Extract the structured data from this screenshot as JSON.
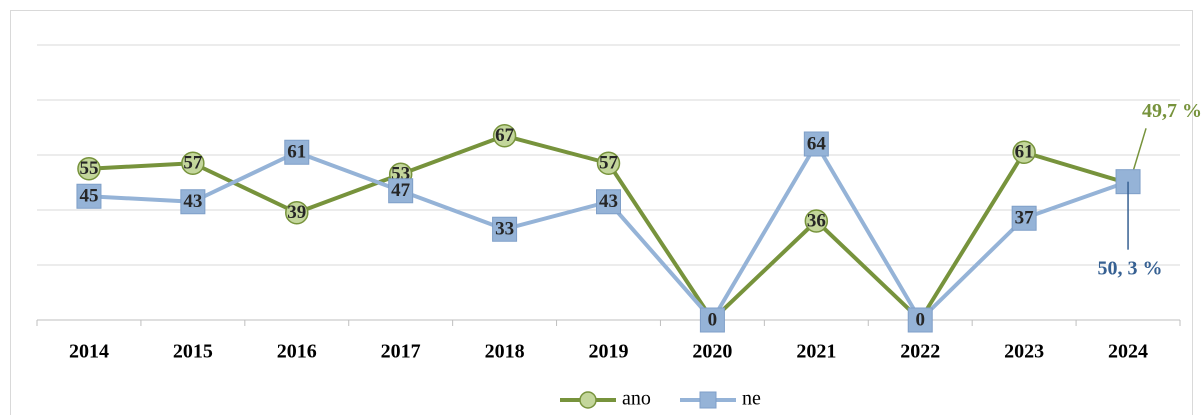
{
  "chart_data": {
    "type": "line",
    "categories": [
      "2014",
      "2015",
      "2016",
      "2017",
      "2018",
      "2019",
      "2020",
      "2021",
      "2022",
      "2023",
      "2024"
    ],
    "series": [
      {
        "name": "ano",
        "color": "#77933c",
        "marker_fill": "#c3d69b",
        "marker": "circle",
        "values": [
          55,
          57,
          39,
          53,
          67,
          57,
          0,
          36,
          0,
          61,
          49.7
        ],
        "value_labels": [
          "55",
          "57",
          "39",
          "53",
          "67",
          "57",
          "0",
          "36",
          "0",
          "61",
          "49,7 %"
        ]
      },
      {
        "name": "ne",
        "color": "#95b3d7",
        "marker_fill": "#95b3d7",
        "marker": "square",
        "values": [
          45,
          43,
          61,
          47,
          33,
          43,
          0,
          64,
          0,
          37,
          50.3
        ],
        "value_labels": [
          "45",
          "43",
          "61",
          "47",
          "33",
          "43",
          "0",
          "64",
          "0",
          "37",
          "50, 3 %"
        ]
      }
    ],
    "ylim": [
      0,
      100
    ],
    "yticks": [
      0,
      20,
      40,
      60,
      80,
      100
    ],
    "grid": true
  }
}
